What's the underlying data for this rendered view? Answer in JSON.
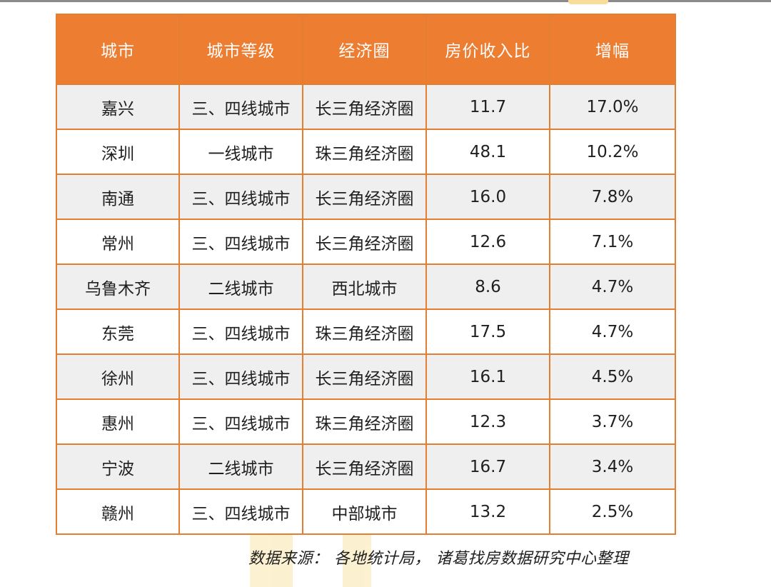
{
  "table": {
    "headers": [
      "城市",
      "城市等级",
      "经济圈",
      "房价收入比",
      "增幅"
    ],
    "rows": [
      [
        "嘉兴",
        "三、四线城市",
        "长三角经济圈",
        "11.7",
        "17.0%"
      ],
      [
        "深圳",
        "一线城市",
        "珠三角经济圈",
        "48.1",
        "10.2%"
      ],
      [
        "南通",
        "三、四线城市",
        "长三角经济圈",
        "16.0",
        "7.8%"
      ],
      [
        "常州",
        "三、四线城市",
        "长三角经济圈",
        "12.6",
        "7.1%"
      ],
      [
        "乌鲁木齐",
        "二线城市",
        "西北城市",
        "8.6",
        "4.7%"
      ],
      [
        "东莞",
        "三、四线城市",
        "珠三角经济圈",
        "17.5",
        "4.7%"
      ],
      [
        "徐州",
        "三、四线城市",
        "长三角经济圈",
        "16.1",
        "4.5%"
      ],
      [
        "惠州",
        "三、四线城市",
        "珠三角经济圈",
        "12.3",
        "3.7%"
      ],
      [
        "宁波",
        "二线城市",
        "长三角经济圈",
        "16.7",
        "3.4%"
      ],
      [
        "赣州",
        "三、四线城市",
        "中部城市",
        "13.2",
        "2.5%"
      ]
    ]
  },
  "source_note": "数据来源： 各地统计局， 诸葛找房数据研究中心整理",
  "colors": {
    "header_bg": "#ed7d31",
    "border": "#e27f33",
    "row_alt_bg": "#efefef",
    "watermark": "#f6d77c"
  }
}
